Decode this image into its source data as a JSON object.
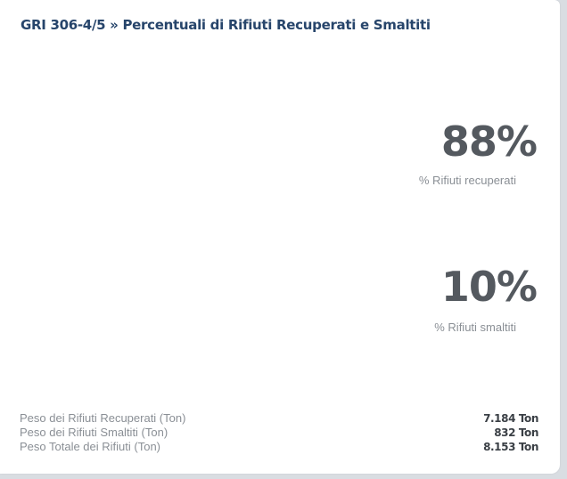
{
  "widget": {
    "title": "GRI 306-4/5 » Percentuali di Rifiuti Recuperati e Smaltiti"
  },
  "kpis": [
    {
      "value": "88%",
      "label": "% Rifiuti recuperati"
    },
    {
      "value": "10%",
      "label": "% Rifiuti smaltiti"
    }
  ],
  "summary": [
    {
      "label": "Peso dei Rifiuti Recuperati (Ton)",
      "value": "7.184 Ton"
    },
    {
      "label": "Peso dei Rifiuti Smaltiti (Ton)",
      "value": "832 Ton"
    },
    {
      "label": "Peso Totale dei Rifiuti (Ton)",
      "value": "8.153 Ton"
    }
  ],
  "colors": {
    "title": "#27456b",
    "kpi_value": "#54595f",
    "muted_text": "#8a8f95",
    "summary_value": "#3a3f45",
    "background": "#d9dde2",
    "card": "#ffffff"
  }
}
